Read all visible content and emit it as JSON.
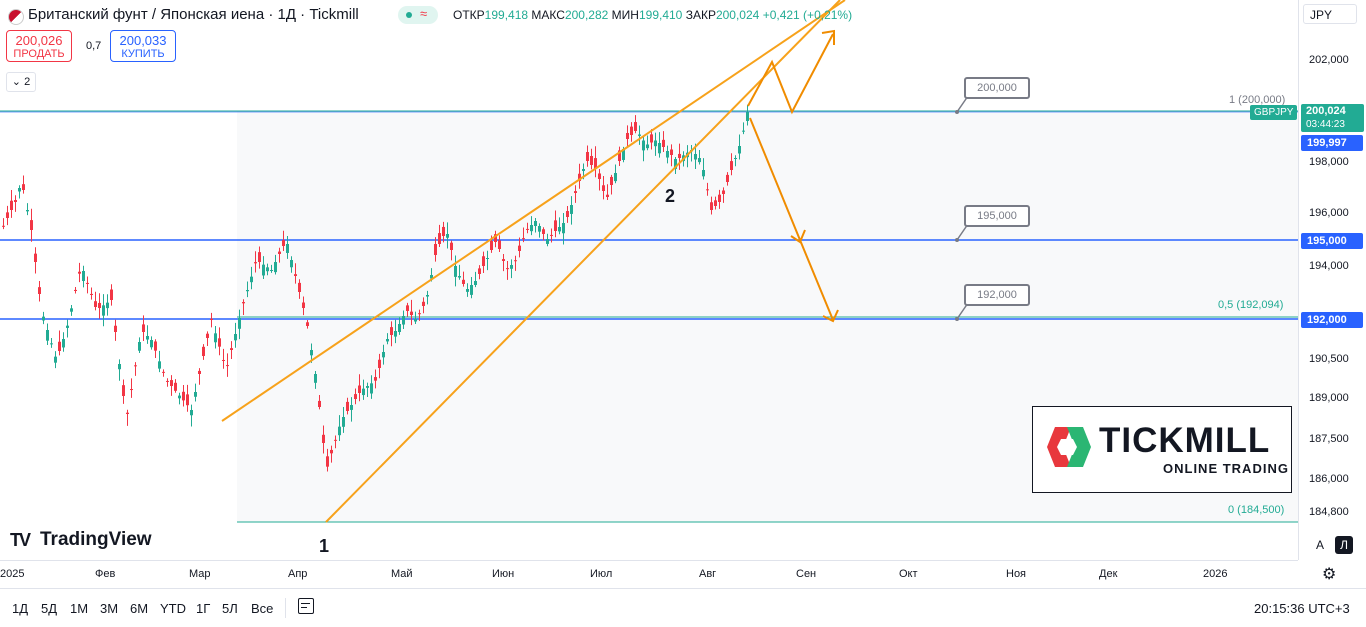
{
  "header": {
    "title": "Британский фунт / Японская иена · 1Д · Tickmill",
    "ohlc": [
      {
        "k": "ОТКР",
        "v": "199,418"
      },
      {
        "k": "МАКС",
        "v": "200,282"
      },
      {
        "k": "МИН",
        "v": "199,410"
      },
      {
        "k": "ЗАКР",
        "v": "200,024"
      }
    ],
    "change": "+0,421 (+0,21%)",
    "sell_price": "200,026",
    "sell_label": "ПРОДАТЬ",
    "spread": "0,7",
    "buy_price": "200,033",
    "buy_label": "КУПИТЬ",
    "collapse_count": "2"
  },
  "price_scale": {
    "currency": "JPY",
    "ticks": [
      "202,000",
      "198,000",
      "196,000",
      "194,000",
      "190,500",
      "189,000",
      "187,500",
      "186,000",
      "184,800"
    ],
    "symbol_tag": "GBPJPY",
    "last_price": "200,024",
    "countdown": "03:44:23",
    "price_label_1": "199,997",
    "price_label_2": "195,000",
    "price_label_3": "192,000",
    "auto_btn": "A",
    "log_btn": "Л"
  },
  "time_axis": [
    "2025",
    "Фев",
    "Мар",
    "Апр",
    "Май",
    "Июн",
    "Июл",
    "Авг",
    "Сен",
    "Окт",
    "Ноя",
    "Дек",
    "2026"
  ],
  "annotations": {
    "callout_1": "200,000",
    "callout_2": "195,000",
    "callout_3": "192,000",
    "fib_1": "1 (200,000)",
    "fib_05": "0,5 (192,094)",
    "fib_0": "0 (184,500)",
    "wave_1": "1",
    "wave_2": "2"
  },
  "logo": {
    "tradingview": "TradingView",
    "tickmill": "TICKMILL",
    "tickmill_sub": "ONLINE TRADING"
  },
  "bottom_bar": {
    "timeframes": [
      "1Д",
      "5Д",
      "1М",
      "3М",
      "6М",
      "YTD",
      "1Г",
      "5Л",
      "Все"
    ],
    "clock": "20:15:36 UTC+3"
  },
  "colors": {
    "up": "#22ab94",
    "down": "#f23645",
    "channel": "#f7a21b",
    "arrow": "#f08c00",
    "hline": "#2962ff",
    "fib": "#22ab94"
  }
}
